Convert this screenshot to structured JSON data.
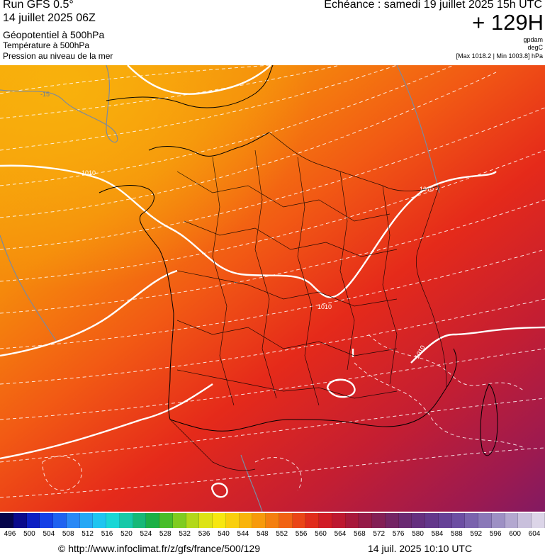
{
  "header": {
    "run": "Run GFS 0.5°",
    "run_date": "14 juillet 2025 06Z",
    "field1": "Géopotentiel à 500hPa",
    "field2": "Température à 500hPa",
    "field3": "Pression au niveau de la mer",
    "echeance": "Echéance : samedi 19 juillet 2025 15h UTC",
    "hour": "+ 129H",
    "unit1": "gpdam",
    "unit2": "degC",
    "maxmin": "[Max 1018.2 | Min 1003.8] hPa"
  },
  "map": {
    "isobar_labels": [
      "1010",
      "1010",
      "1010",
      "1010"
    ],
    "isotherm_label": "-15",
    "colors": {
      "orange_light": "#f7a80a",
      "orange": "#f58a0c",
      "red_orange": "#f25a14",
      "red": "#e52a1a",
      "crimson": "#b81a3c",
      "purple": "#8a1a5e"
    }
  },
  "legend": {
    "ticks": [
      "496",
      "500",
      "504",
      "508",
      "512",
      "516",
      "520",
      "524",
      "528",
      "532",
      "536",
      "540",
      "544",
      "548",
      "552",
      "556",
      "560",
      "564",
      "568",
      "572",
      "576",
      "580",
      "584",
      "588",
      "592",
      "596",
      "600",
      "604"
    ],
    "colors": [
      "#05054b",
      "#0a0a8c",
      "#0d1fc2",
      "#1540e6",
      "#1f62f0",
      "#2a88f5",
      "#25a8f5",
      "#1ec5f0",
      "#19d6d6",
      "#17c9a8",
      "#16b877",
      "#1bb046",
      "#48bd2a",
      "#7fcc20",
      "#b2d81a",
      "#dde315",
      "#f7e710",
      "#f9cf0d",
      "#f9b40b",
      "#f79a0b",
      "#f47f0f",
      "#f16314",
      "#ea4517",
      "#e02c1c",
      "#d01c26",
      "#bd1830",
      "#a8183b",
      "#951b48",
      "#831f55",
      "#742464",
      "#6a2a72",
      "#652f7f",
      "#63378b",
      "#664197",
      "#6c4ea2",
      "#7a62ad",
      "#8a78b8",
      "#9d90c4",
      "#b3a8d0",
      "#c9c0dc",
      "#dcd5e8"
    ]
  },
  "footer": {
    "source": "© http://www.infoclimat.fr/z/gfs/france/500/129",
    "timestamp": "14 juil. 2025 10:10 UTC"
  }
}
